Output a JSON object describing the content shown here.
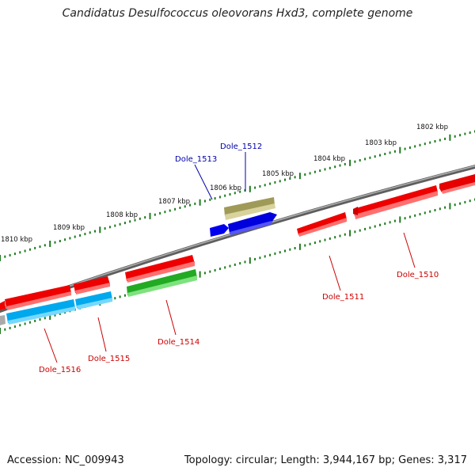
{
  "title": "Candidatus Desulfococcus oleovorans Hxd3, complete genome",
  "footer": {
    "accession_label": "Accession: NC_009943",
    "summary": "Topology: circular; Length: 3,944,167 bp; Genes: 3,317"
  },
  "colors": {
    "backbone": "#7f7f7f",
    "tick": "#1f7a1f",
    "forward_gene": "#ff0000",
    "reverse_gene": "#ff0000",
    "blue_gene": "#0000ee",
    "cyan_gene": "#00bfff",
    "green_gene": "#33cc33",
    "olive_gene": "#b5ad6b",
    "label_forward": "#0000aa",
    "label_reverse": "#cc0000"
  },
  "scale": {
    "kbp_labels": [
      "1802 kbp",
      "1803 kbp",
      "1804 kbp",
      "1805 kbp",
      "1806 kbp",
      "1807 kbp",
      "1808 kbp",
      "1809 kbp",
      "1810 kbp"
    ]
  },
  "genes": [
    {
      "id": "Dole_1510",
      "strand": "reverse"
    },
    {
      "id": "Dole_1511",
      "strand": "reverse"
    },
    {
      "id": "Dole_1512",
      "strand": "forward"
    },
    {
      "id": "Dole_1513",
      "strand": "forward"
    },
    {
      "id": "Dole_1514",
      "strand": "reverse"
    },
    {
      "id": "Dole_1515",
      "strand": "reverse"
    },
    {
      "id": "Dole_1516",
      "strand": "reverse"
    }
  ]
}
